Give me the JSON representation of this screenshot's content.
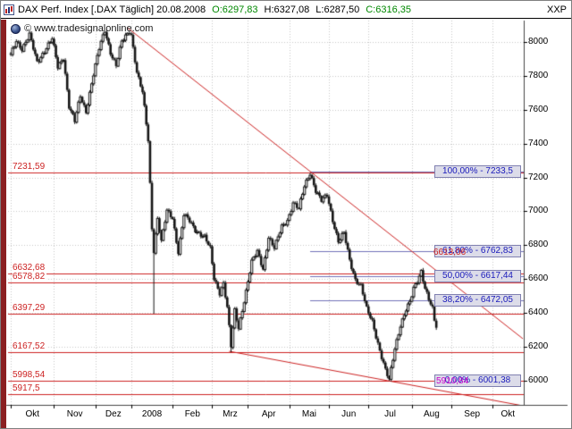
{
  "window": {
    "corner_label": "XXP"
  },
  "titlebar": {
    "title": "DAX Perf. Index [.DAX  Täglich] 20.08.2008",
    "open": "O:6297,83",
    "high": "H:6327,08",
    "low": "L:6287,50",
    "close": "C:6316,35"
  },
  "watermark": "© www.tradesignalonline.com",
  "colors": {
    "line_red": "#cc2222",
    "fib_line": "#7070b8",
    "fib_text": "#1a1abb",
    "candle": "#151515",
    "strip_maroon": "#8b2022",
    "quote_green": "#008800",
    "magenta": "#cc00cc"
  },
  "chart_data": {
    "type": "candlestick",
    "title": "DAX Perf. Index [.DAX Täglich] 20.08.2008",
    "instrument": "DAX Perf. Index",
    "symbol": ".DAX",
    "interval": "Täglich",
    "last_date": "20.08.2008",
    "last_quote": {
      "open": 6297.83,
      "high": 6327.08,
      "low": 6287.5,
      "close": 6316.35
    },
    "y_axis": {
      "ticks": [
        8000,
        7800,
        7600,
        7400,
        7200,
        7000,
        6800,
        6600,
        6400,
        6200,
        6000
      ],
      "min": 5800,
      "max": 8150
    },
    "x_axis": {
      "labels": [
        "Okt",
        "Nov",
        "Dez",
        "2008",
        "Feb",
        "Mrz",
        "Apr",
        "Mai",
        "Jun",
        "Jul",
        "Aug",
        "Sep",
        "Okt"
      ],
      "boundaries": [
        0,
        23,
        45,
        64,
        86,
        107,
        126,
        148,
        169,
        190,
        213,
        234,
        256
      ],
      "days_total": 272
    },
    "levels": [
      {
        "value": 7231.59,
        "label": "7231,59"
      },
      {
        "value": 6632.68,
        "label": "6632,68"
      },
      {
        "value": 6578.82,
        "label": "6578,82"
      },
      {
        "value": 6397.29,
        "label": "6397,29"
      },
      {
        "value": 6167.52,
        "label": "6167,52"
      },
      {
        "value": 5998.54,
        "label": "5998,54"
      },
      {
        "value": 5917.5,
        "label": "5917,5"
      }
    ],
    "fib": [
      {
        "pct": "100,00%",
        "value": 7233.5,
        "label": "100,00% - 7233,5"
      },
      {
        "pct": "61,80%",
        "value": 6762.83,
        "label": "61,80% - 6762,83"
      },
      {
        "pct": "50,00%",
        "value": 6617.44,
        "label": "50,00% - 6617,44"
      },
      {
        "pct": "38,20%",
        "value": 6472.05,
        "label": "38,20% - 6472,05"
      },
      {
        "pct": "0,00%",
        "value": 6001.38,
        "label": "0,00% - 6001,38"
      }
    ],
    "extra_labels": [
      {
        "text": "6613,06",
        "color": "#cc2222"
      },
      {
        "text": "5910,84",
        "color": "#cc00cc"
      }
    ],
    "trendlines": [
      {
        "d1": 62,
        "p1": 8084,
        "d2": 272,
        "p2": 6247
      },
      {
        "d1": 116,
        "p1": 6173,
        "d2": 272,
        "p2": 5851
      }
    ],
    "anchors": [
      [
        0,
        7920
      ],
      [
        3,
        8010
      ],
      [
        6,
        7960
      ],
      [
        10,
        8040
      ],
      [
        14,
        7880
      ],
      [
        18,
        7950
      ],
      [
        22,
        8019
      ],
      [
        25,
        7850
      ],
      [
        28,
        7910
      ],
      [
        31,
        7620
      ],
      [
        34,
        7530
      ],
      [
        37,
        7680
      ],
      [
        40,
        7590
      ],
      [
        44,
        7810
      ],
      [
        47,
        7960
      ],
      [
        50,
        8070
      ],
      [
        53,
        7940
      ],
      [
        56,
        7860
      ],
      [
        59,
        8000
      ],
      [
        63,
        8067
      ],
      [
        64,
        8045
      ],
      [
        67,
        7820
      ],
      [
        70,
        7700
      ],
      [
        73,
        7420
      ],
      [
        75,
        6900
      ],
      [
        76,
        6770,
        6395
      ],
      [
        78,
        6960
      ],
      [
        80,
        6820
      ],
      [
        83,
        7000
      ],
      [
        86,
        6960
      ],
      [
        89,
        6760
      ],
      [
        92,
        6980
      ],
      [
        95,
        6940
      ],
      [
        98,
        6890
      ],
      [
        103,
        6850
      ],
      [
        106,
        6775
      ],
      [
        108,
        6600
      ],
      [
        111,
        6520
      ],
      [
        113,
        6580
      ],
      [
        115,
        6430
      ],
      [
        117,
        6200,
        6167
      ],
      [
        119,
        6410
      ],
      [
        121,
        6310
      ],
      [
        125,
        6530
      ],
      [
        128,
        6700
      ],
      [
        131,
        6760
      ],
      [
        134,
        6660
      ],
      [
        137,
        6850
      ],
      [
        140,
        6780
      ],
      [
        144,
        6910
      ],
      [
        147,
        6948
      ],
      [
        150,
        7050
      ],
      [
        153,
        7010
      ],
      [
        156,
        7150
      ],
      [
        159,
        7230
      ],
      [
        162,
        7120
      ],
      [
        165,
        7060
      ],
      [
        168,
        7097
      ],
      [
        171,
        6950
      ],
      [
        174,
        6820
      ],
      [
        177,
        6870
      ],
      [
        180,
        6710
      ],
      [
        183,
        6600
      ],
      [
        186,
        6560
      ],
      [
        189,
        6420
      ],
      [
        192,
        6350
      ],
      [
        196,
        6180
      ],
      [
        199,
        6060
      ],
      [
        201,
        6000,
        5999
      ],
      [
        204,
        6190
      ],
      [
        207,
        6330
      ],
      [
        210,
        6420
      ],
      [
        212,
        6460
      ],
      [
        214,
        6540
      ],
      [
        216,
        6590
      ],
      [
        218,
        6650
      ],
      [
        220,
        6550
      ],
      [
        222,
        6480
      ],
      [
        224,
        6420
      ],
      [
        225,
        6350
      ],
      [
        226,
        6316
      ]
    ]
  }
}
